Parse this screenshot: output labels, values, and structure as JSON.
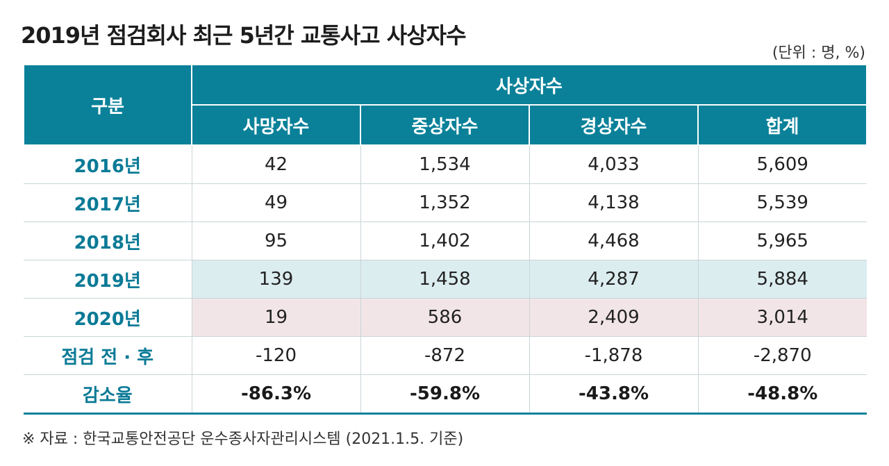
{
  "title": "2019년 점검회사 최근 5년간 교통사고 사상자수",
  "unit": "(단위 : 명, %)",
  "header": {
    "category": "구분",
    "group": "사상자수",
    "columns": [
      "사망자수",
      "중상자수",
      "경상자수",
      "합계"
    ]
  },
  "rows": [
    {
      "label": "2016년",
      "values": [
        "42",
        "1,534",
        "4,033",
        "5,609"
      ]
    },
    {
      "label": "2017년",
      "values": [
        "49",
        "1,352",
        "4,138",
        "5,539"
      ]
    },
    {
      "label": "2018년",
      "values": [
        "95",
        "1,402",
        "4,468",
        "5,965"
      ]
    },
    {
      "label": "2019년",
      "values": [
        "139",
        "1,458",
        "4,287",
        "5,884"
      ]
    },
    {
      "label": "2020년",
      "values": [
        "19",
        "586",
        "2,409",
        "3,014"
      ]
    },
    {
      "label": "점검 전 · 후",
      "values": [
        "-120",
        "-872",
        "-1,878",
        "-2,870"
      ]
    },
    {
      "label": "감소율",
      "values": [
        "-86.3%",
        "-59.8%",
        "-43.8%",
        "-48.8%"
      ]
    }
  ],
  "source": "※ 자료 : 한국교통안전공단 운수종사자관리시스템 (2021.1.5. 기준)",
  "colors": {
    "header_bg": "#0a8199",
    "row_label": "#0a7a96",
    "highlight_2019": "#dcedf0",
    "highlight_2020": "#f2e5e8"
  }
}
